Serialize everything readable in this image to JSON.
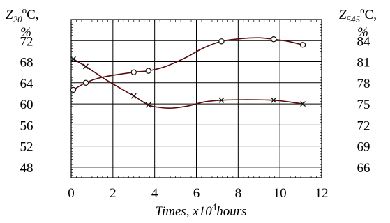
{
  "chart_data": {
    "type": "line",
    "xlabel_prefix": "Times, x10",
    "xlabel_exp": "4",
    "xlabel_suffix": "hours",
    "left_axis": {
      "label_main": "Z",
      "label_sub": "20",
      "label_deg": "o",
      "label_unit": "C,",
      "label_pct": "%",
      "ticks": [
        72,
        68,
        64,
        60,
        56,
        52,
        48
      ],
      "ylim": [
        46,
        76
      ]
    },
    "right_axis": {
      "label_main": "Z",
      "label_sub": "545",
      "label_deg": "o",
      "label_unit": "C,",
      "label_pct": "%",
      "ticks": [
        84,
        81,
        78,
        75,
        72,
        69,
        66
      ],
      "ylim": [
        64.5,
        87
      ]
    },
    "x_ticks": [
      0,
      2,
      4,
      6,
      8,
      10,
      12
    ],
    "xlim": [
      0,
      12
    ],
    "grid": true,
    "series": [
      {
        "marker": "circle",
        "axis": "right",
        "color": "#5a0a0a",
        "points": [
          [
            0.1,
            77.0
          ],
          [
            0.7,
            78.0
          ],
          [
            3.0,
            79.5
          ],
          [
            3.7,
            79.7
          ],
          [
            7.2,
            83.9
          ],
          [
            9.7,
            84.2
          ],
          [
            11.1,
            83.4
          ]
        ],
        "curve": [
          [
            0.1,
            77.0
          ],
          [
            0.7,
            78.0
          ],
          [
            1.5,
            78.8
          ],
          [
            3.0,
            79.5
          ],
          [
            3.7,
            79.7
          ],
          [
            4.5,
            80.3
          ],
          [
            5.5,
            81.6
          ],
          [
            6.3,
            82.9
          ],
          [
            7.2,
            83.9
          ],
          [
            8.2,
            84.3
          ],
          [
            9.0,
            84.4
          ],
          [
            9.7,
            84.2
          ],
          [
            10.4,
            83.9
          ],
          [
            11.1,
            83.4
          ]
        ]
      },
      {
        "marker": "x",
        "axis": "left",
        "color": "#5a0a0a",
        "points": [
          [
            0.1,
            68.5
          ],
          [
            0.7,
            67.1
          ],
          [
            3.0,
            61.5
          ],
          [
            3.7,
            59.8
          ],
          [
            7.2,
            60.7
          ],
          [
            9.7,
            60.7
          ],
          [
            11.1,
            60.0
          ]
        ],
        "curve": [
          [
            0.1,
            68.5
          ],
          [
            0.7,
            67.1
          ],
          [
            1.7,
            64.5
          ],
          [
            3.0,
            61.5
          ],
          [
            3.7,
            59.8
          ],
          [
            4.3,
            59.3
          ],
          [
            4.8,
            59.2
          ],
          [
            5.6,
            59.6
          ],
          [
            6.4,
            60.4
          ],
          [
            7.2,
            60.7
          ],
          [
            8.4,
            60.8
          ],
          [
            9.7,
            60.7
          ],
          [
            10.4,
            60.4
          ],
          [
            11.1,
            60.0
          ]
        ]
      }
    ]
  }
}
